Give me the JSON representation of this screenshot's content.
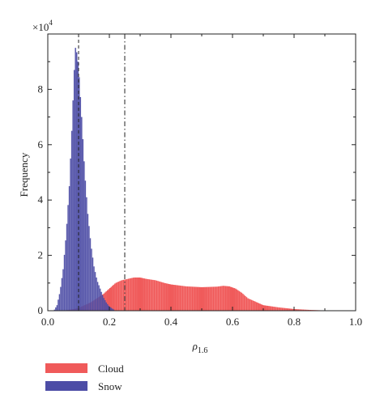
{
  "chart_data": {
    "type": "histogram",
    "title": "",
    "xlabel_symbol": "ρ",
    "xlabel_subscript": "1.6",
    "ylabel": "Frequency",
    "y_multiplier": "×10",
    "y_multiplier_exponent": "4",
    "xlim": [
      0,
      1.0
    ],
    "ylim": [
      0,
      10
    ],
    "x_ticks": [
      0.0,
      0.2,
      0.4,
      0.6,
      0.8,
      1.0
    ],
    "x_tick_labels": [
      "0.0",
      "0.2",
      "0.4",
      "0.6",
      "0.8",
      "1.0"
    ],
    "y_ticks": [
      0,
      2,
      4,
      6,
      8
    ],
    "y_tick_labels": [
      "0",
      "2",
      "4",
      "6",
      "8"
    ],
    "vertical_lines": [
      {
        "x": 0.1,
        "style": "dashed"
      },
      {
        "x": 0.25,
        "style": "dash-dot"
      }
    ],
    "legend_placement": "below-left",
    "series": [
      {
        "name": "Cloud",
        "color": "#f05a5a",
        "x": [
          0.02,
          0.05,
          0.08,
          0.1,
          0.12,
          0.14,
          0.16,
          0.18,
          0.2,
          0.22,
          0.24,
          0.26,
          0.28,
          0.3,
          0.32,
          0.35,
          0.38,
          0.4,
          0.45,
          0.5,
          0.55,
          0.57,
          0.59,
          0.61,
          0.63,
          0.65,
          0.68,
          0.7,
          0.75,
          0.8,
          0.85,
          0.9,
          0.95
        ],
        "values": [
          0,
          0,
          0.05,
          0.1,
          0.2,
          0.3,
          0.45,
          0.6,
          0.8,
          1.0,
          1.1,
          1.15,
          1.2,
          1.2,
          1.15,
          1.1,
          1.0,
          0.95,
          0.88,
          0.85,
          0.87,
          0.9,
          0.88,
          0.8,
          0.65,
          0.45,
          0.3,
          0.2,
          0.12,
          0.06,
          0.03,
          0.01,
          0
        ]
      },
      {
        "name": "Snow",
        "color": "#4d4da6",
        "x": [
          0.02,
          0.03,
          0.04,
          0.05,
          0.06,
          0.07,
          0.08,
          0.085,
          0.09,
          0.095,
          0.1,
          0.11,
          0.12,
          0.13,
          0.14,
          0.15,
          0.16,
          0.17,
          0.18,
          0.19,
          0.2,
          0.22
        ],
        "values": [
          0,
          0.2,
          0.7,
          1.5,
          2.8,
          4.5,
          7.0,
          8.5,
          9.5,
          9.3,
          8.8,
          7.0,
          5.0,
          3.5,
          2.4,
          1.6,
          1.1,
          0.8,
          0.5,
          0.3,
          0.15,
          0
        ]
      }
    ]
  }
}
